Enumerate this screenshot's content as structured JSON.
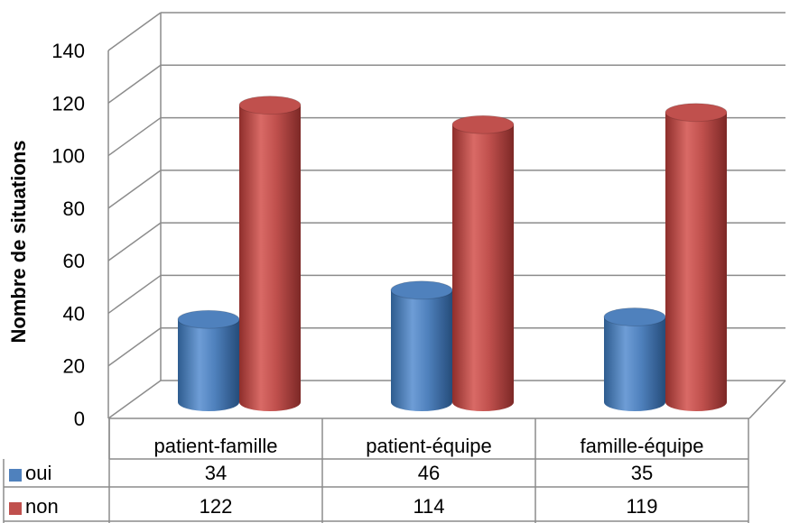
{
  "chart_data": {
    "type": "bar",
    "ylabel": "Nombre de situations",
    "ylim": [
      0,
      140
    ],
    "yticks": [
      "0",
      "20",
      "40",
      "60",
      "80",
      "100",
      "120",
      "140"
    ],
    "categories": [
      "patient-famille",
      "patient-équipe",
      "famille-équipe"
    ],
    "series": [
      {
        "name": "oui",
        "values": [
          34,
          46,
          35
        ]
      },
      {
        "name": "non",
        "values": [
          122,
          114,
          119
        ]
      }
    ],
    "table": {
      "rows": [
        {
          "name": "oui",
          "cells": [
            "34",
            "46",
            "35"
          ]
        },
        {
          "name": "non",
          "cells": [
            "122",
            "114",
            "119"
          ]
        }
      ]
    },
    "grid": true,
    "legend": "data-table"
  },
  "colors": {
    "oui": "#4F81BD",
    "non": "#C0504D",
    "grid": "#8C8C8C"
  }
}
